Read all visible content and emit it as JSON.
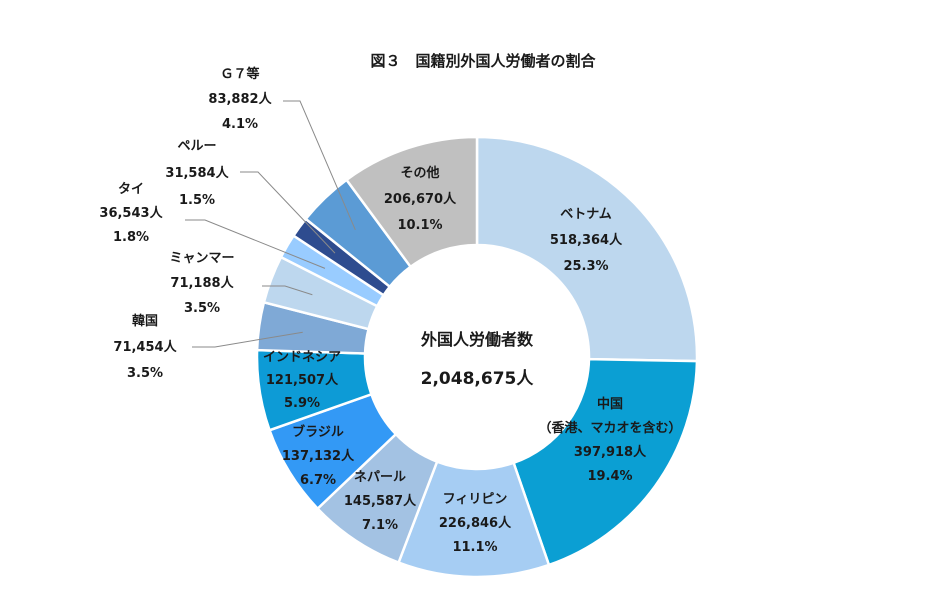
{
  "chart_data": {
    "type": "pie",
    "title": "図３　国籍別外国人労働者の割合",
    "center_label": "外国人労働者数",
    "center_value": "2,048,675人",
    "slices": [
      {
        "name": "ベトナム",
        "count": "518,364人",
        "percent": "25.3%",
        "value": 25.3,
        "color": "#bdd7ee"
      },
      {
        "name": "中国",
        "name2": "（香港、マカオを含む）",
        "count": "397,918人",
        "percent": "19.4%",
        "value": 19.4,
        "color": "#0b9fd3"
      },
      {
        "name": "フィリピン",
        "count": "226,846人",
        "percent": "11.1%",
        "value": 11.1,
        "color": "#a6cdf3"
      },
      {
        "name": "ネパール",
        "count": "145,587人",
        "percent": "7.1%",
        "value": 7.1,
        "color": "#a3c2e3"
      },
      {
        "name": "ブラジル",
        "count": "137,132人",
        "percent": "6.7%",
        "value": 6.7,
        "color": "#3399f5"
      },
      {
        "name": "インドネシア",
        "count": "121,507人",
        "percent": "5.9%",
        "value": 5.9,
        "color": "#0d9bd6"
      },
      {
        "name": "韓国",
        "count": "71,454人",
        "percent": "3.5%",
        "value": 3.5,
        "color": "#7fa9d6"
      },
      {
        "name": "ミャンマー",
        "count": "71,188人",
        "percent": "3.5%",
        "value": 3.5,
        "color": "#bdd7ee"
      },
      {
        "name": "タイ",
        "count": "36,543人",
        "percent": "1.8%",
        "value": 1.8,
        "color": "#99ccff"
      },
      {
        "name": "ペルー",
        "count": "31,584人",
        "percent": "1.5%",
        "value": 1.5,
        "color": "#2e4c8f"
      },
      {
        "name": "Ｇ７等",
        "count": "83,882人",
        "percent": "4.1%",
        "value": 4.1,
        "color": "#5b9bd5"
      },
      {
        "name": "その他",
        "count": "206,670人",
        "percent": "10.1%",
        "value": 10.1,
        "color": "#c0c0c0"
      }
    ]
  }
}
